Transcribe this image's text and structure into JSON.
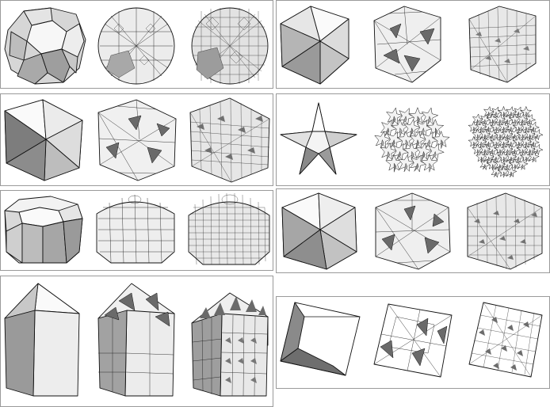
{
  "figure": {
    "kind": "polyhedra-subdivision-grid",
    "panel_count": 8,
    "columns": 2,
    "rows": 4,
    "items_per_panel": 3,
    "colors": {
      "background": "#ffffff",
      "panel_border": "#9a9a9a",
      "edge": "#111111",
      "face_light": "#f4f4f4",
      "face_mid": "#c9c9c9",
      "face_dark": "#8c8c8c",
      "notch": "#6a6a6a"
    },
    "panels": [
      {
        "shape": "truncated-icosahedron-like",
        "stages": [
          "base",
          "subdivided",
          "refined"
        ]
      },
      {
        "shape": "tetrakis-cube-like",
        "stages": [
          "base",
          "subdivided",
          "refined"
        ]
      },
      {
        "shape": "octahedral-solid",
        "stages": [
          "base",
          "subdivided",
          "refined"
        ]
      },
      {
        "shape": "star-polyhedron",
        "stages": [
          "base",
          "subdivided",
          "refined"
        ]
      },
      {
        "shape": "elongated-dome",
        "stages": [
          "base",
          "subdivided",
          "refined"
        ]
      },
      {
        "shape": "icosahedral-solid",
        "stages": [
          "base",
          "subdivided",
          "refined"
        ]
      },
      {
        "shape": "house-prism",
        "stages": [
          "base",
          "subdivided",
          "refined"
        ]
      },
      {
        "shape": "open-cube-frame",
        "stages": [
          "base",
          "subdivided",
          "refined"
        ]
      }
    ]
  }
}
